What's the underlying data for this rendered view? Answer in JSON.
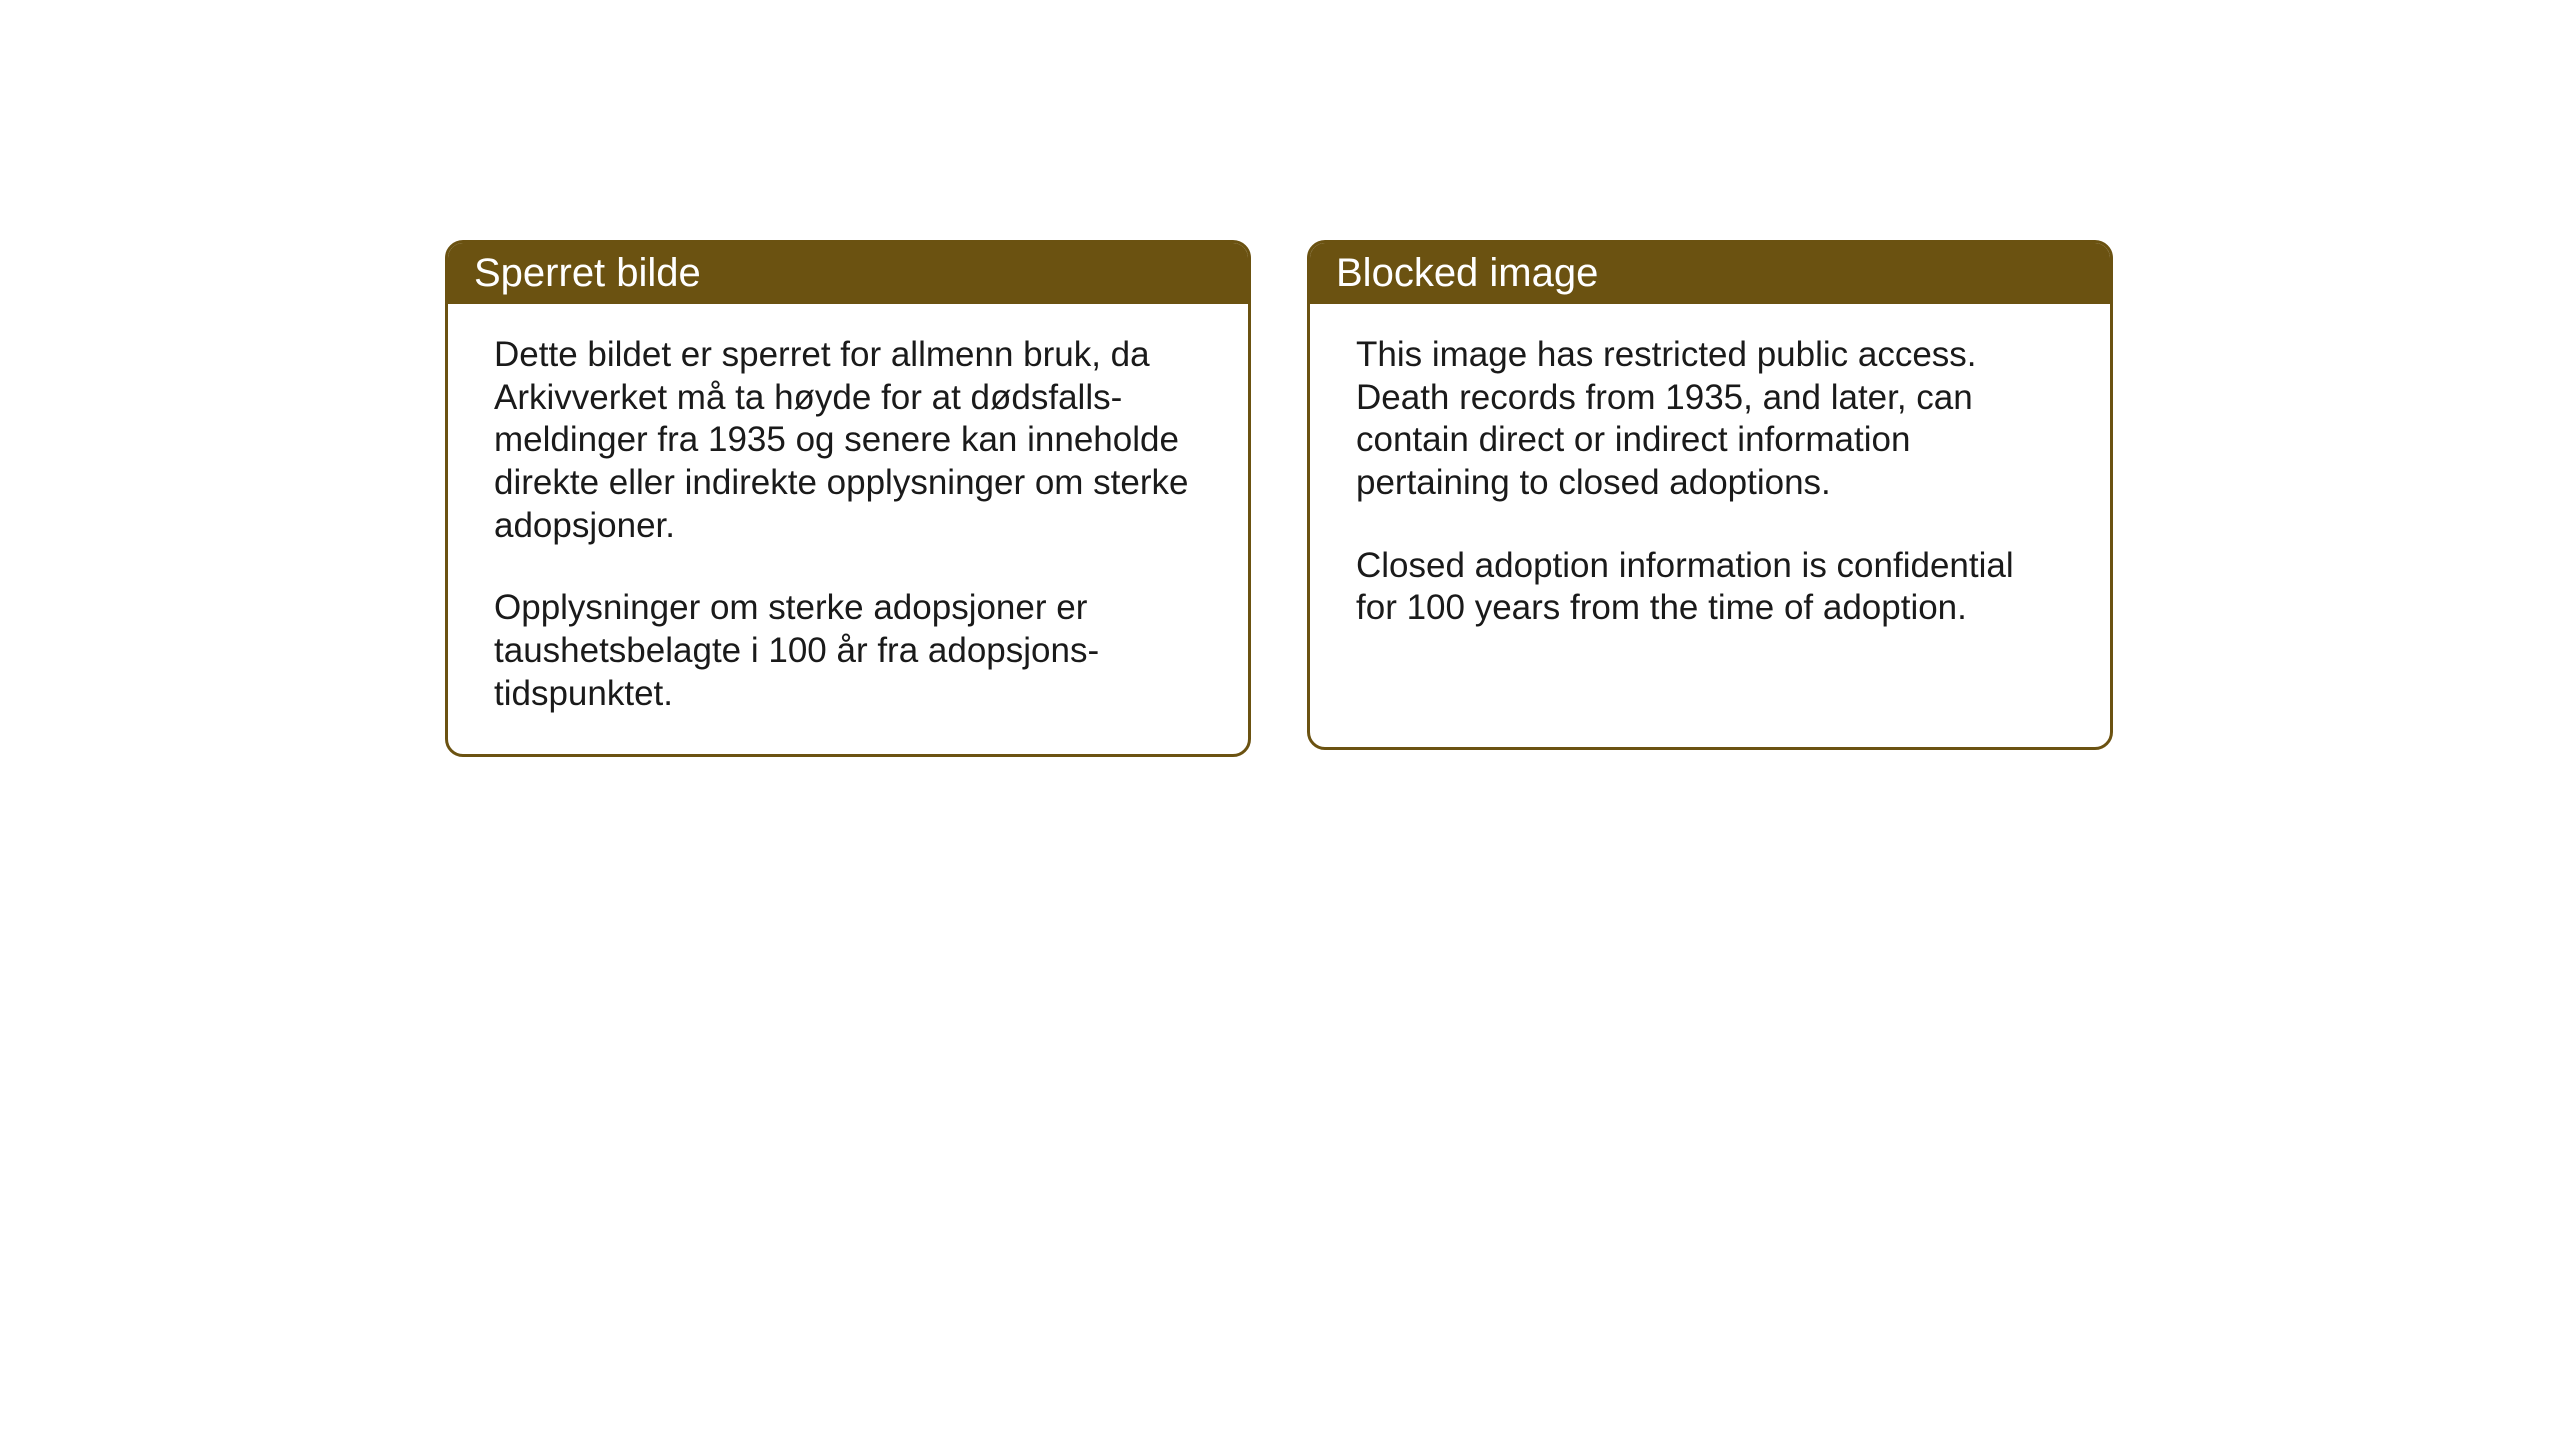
{
  "layout": {
    "background_color": "#ffffff",
    "box_border_color": "#6b5211",
    "header_bg_color": "#6b5211",
    "header_text_color": "#ffffff",
    "body_text_color": "#1a1a1a",
    "border_radius": 18,
    "border_width": 3,
    "header_fontsize": 40,
    "body_fontsize": 35
  },
  "norwegian": {
    "title": "Sperret bilde",
    "paragraph1": "Dette bildet er sperret for allmenn bruk, da Arkivverket må ta høyde for at dødsfalls-meldinger fra 1935 og senere kan inneholde direkte eller indirekte opplysninger om sterke adopsjoner.",
    "paragraph2": "Opplysninger om sterke adopsjoner er taushetsbelagte i 100 år fra adopsjons-tidspunktet."
  },
  "english": {
    "title": "Blocked image",
    "paragraph1": "This image has restricted public access. Death records from 1935, and later, can contain direct or indirect information pertaining to closed adoptions.",
    "paragraph2": "Closed adoption information is confidential for 100 years from the time of adoption."
  }
}
